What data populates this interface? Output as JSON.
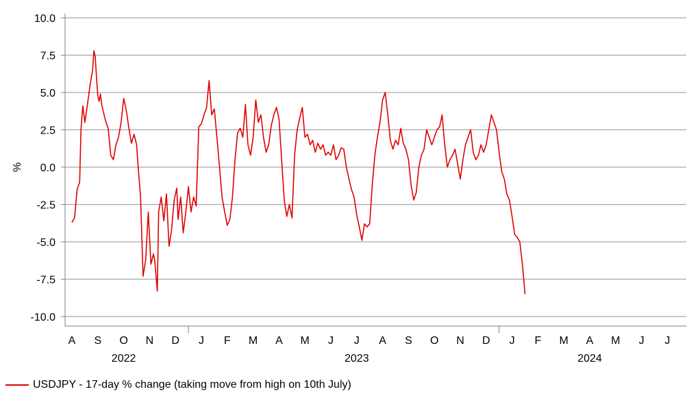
{
  "chart_data": {
    "type": "line",
    "title": "",
    "xlabel": "",
    "ylabel": "%",
    "ylim": [
      -10,
      10
    ],
    "yticks": [
      "10.0",
      "7.5",
      "5.0",
      "2.5",
      "0.0",
      "-2.5",
      "-5.0",
      "-7.5",
      "-10.0"
    ],
    "grid": true,
    "legend_position": "bottom-left",
    "months": [
      "A",
      "S",
      "O",
      "N",
      "D",
      "J",
      "F",
      "M",
      "A",
      "M",
      "J",
      "J",
      "A",
      "S",
      "O",
      "N",
      "D",
      "J",
      "F",
      "M",
      "A",
      "M",
      "J",
      "J"
    ],
    "years": [
      {
        "label": "2022",
        "month_index": 2
      },
      {
        "label": "2023",
        "month_index": 11
      },
      {
        "label": "2024",
        "month_index": 20
      }
    ],
    "series": [
      {
        "name": "USDJPY - 17-day % change (taking move from high on 10th July)",
        "color": "#e00000",
        "points": [
          [
            0.0,
            -3.7
          ],
          [
            0.1,
            -3.4
          ],
          [
            0.2,
            -1.5
          ],
          [
            0.3,
            -1.0
          ],
          [
            0.35,
            2.5
          ],
          [
            0.42,
            4.1
          ],
          [
            0.5,
            3.0
          ],
          [
            0.6,
            4.2
          ],
          [
            0.7,
            5.5
          ],
          [
            0.8,
            6.5
          ],
          [
            0.85,
            7.8
          ],
          [
            0.9,
            7.4
          ],
          [
            0.95,
            6.0
          ],
          [
            1.0,
            4.8
          ],
          [
            1.05,
            4.4
          ],
          [
            1.1,
            4.9
          ],
          [
            1.15,
            4.2
          ],
          [
            1.2,
            3.8
          ],
          [
            1.3,
            3.1
          ],
          [
            1.4,
            2.6
          ],
          [
            1.5,
            0.8
          ],
          [
            1.6,
            0.5
          ],
          [
            1.65,
            1.0
          ],
          [
            1.7,
            1.5
          ],
          [
            1.8,
            2.0
          ],
          [
            1.9,
            3.0
          ],
          [
            2.0,
            4.6
          ],
          [
            2.1,
            3.8
          ],
          [
            2.2,
            2.6
          ],
          [
            2.3,
            1.6
          ],
          [
            2.4,
            2.2
          ],
          [
            2.5,
            1.5
          ],
          [
            2.55,
            0.2
          ],
          [
            2.65,
            -2.0
          ],
          [
            2.75,
            -7.3
          ],
          [
            2.85,
            -6.2
          ],
          [
            2.95,
            -3.0
          ],
          [
            3.05,
            -6.5
          ],
          [
            3.15,
            -5.8
          ],
          [
            3.2,
            -6.3
          ],
          [
            3.3,
            -8.3
          ],
          [
            3.35,
            -3.0
          ],
          [
            3.45,
            -2.0
          ],
          [
            3.55,
            -3.6
          ],
          [
            3.65,
            -1.8
          ],
          [
            3.75,
            -5.3
          ],
          [
            3.85,
            -4.2
          ],
          [
            3.95,
            -2.2
          ],
          [
            4.05,
            -1.4
          ],
          [
            4.1,
            -3.5
          ],
          [
            4.2,
            -2.0
          ],
          [
            4.3,
            -4.4
          ],
          [
            4.4,
            -3.0
          ],
          [
            4.5,
            -1.3
          ],
          [
            4.6,
            -3.0
          ],
          [
            4.7,
            -2.0
          ],
          [
            4.8,
            -2.6
          ],
          [
            4.9,
            2.7
          ],
          [
            5.0,
            2.9
          ],
          [
            5.1,
            3.5
          ],
          [
            5.2,
            4.0
          ],
          [
            5.3,
            5.8
          ],
          [
            5.4,
            3.5
          ],
          [
            5.5,
            3.9
          ],
          [
            5.6,
            2.0
          ],
          [
            5.7,
            0.0
          ],
          [
            5.8,
            -2.0
          ],
          [
            5.9,
            -3.0
          ],
          [
            6.0,
            -3.9
          ],
          [
            6.1,
            -3.5
          ],
          [
            6.2,
            -2.0
          ],
          [
            6.3,
            0.5
          ],
          [
            6.4,
            2.3
          ],
          [
            6.5,
            2.6
          ],
          [
            6.6,
            2.0
          ],
          [
            6.7,
            4.2
          ],
          [
            6.8,
            1.5
          ],
          [
            6.9,
            0.8
          ],
          [
            7.0,
            2.0
          ],
          [
            7.1,
            4.5
          ],
          [
            7.2,
            3.0
          ],
          [
            7.3,
            3.5
          ],
          [
            7.4,
            2.0
          ],
          [
            7.5,
            1.0
          ],
          [
            7.6,
            1.5
          ],
          [
            7.7,
            2.8
          ],
          [
            7.8,
            3.5
          ],
          [
            7.9,
            4.0
          ],
          [
            8.0,
            3.2
          ],
          [
            8.1,
            0.5
          ],
          [
            8.2,
            -2.2
          ],
          [
            8.3,
            -3.3
          ],
          [
            8.4,
            -2.5
          ],
          [
            8.5,
            -3.4
          ],
          [
            8.6,
            0.8
          ],
          [
            8.7,
            2.5
          ],
          [
            8.8,
            3.3
          ],
          [
            8.9,
            4.0
          ],
          [
            9.0,
            2.0
          ],
          [
            9.1,
            2.2
          ],
          [
            9.2,
            1.5
          ],
          [
            9.3,
            1.8
          ],
          [
            9.4,
            1.0
          ],
          [
            9.5,
            1.6
          ],
          [
            9.6,
            1.2
          ],
          [
            9.7,
            1.5
          ],
          [
            9.8,
            0.8
          ],
          [
            9.9,
            1.0
          ],
          [
            10.0,
            0.8
          ],
          [
            10.1,
            1.5
          ],
          [
            10.2,
            0.5
          ],
          [
            10.3,
            0.8
          ],
          [
            10.4,
            1.3
          ],
          [
            10.5,
            1.2
          ],
          [
            10.6,
            0.0
          ],
          [
            10.7,
            -0.8
          ],
          [
            10.8,
            -1.5
          ],
          [
            10.9,
            -2.0
          ],
          [
            11.0,
            -3.2
          ],
          [
            11.1,
            -4.0
          ],
          [
            11.2,
            -4.9
          ],
          [
            11.3,
            -3.8
          ],
          [
            11.4,
            -4.0
          ],
          [
            11.5,
            -3.8
          ],
          [
            11.6,
            -1.2
          ],
          [
            11.7,
            0.8
          ],
          [
            11.8,
            2.0
          ],
          [
            11.9,
            3.0
          ],
          [
            12.0,
            4.5
          ],
          [
            12.1,
            5.0
          ],
          [
            12.2,
            3.5
          ],
          [
            12.3,
            1.8
          ],
          [
            12.4,
            1.2
          ],
          [
            12.5,
            1.8
          ],
          [
            12.6,
            1.5
          ],
          [
            12.7,
            2.6
          ],
          [
            12.8,
            1.6
          ],
          [
            12.9,
            1.2
          ],
          [
            13.0,
            0.5
          ],
          [
            13.1,
            -1.2
          ],
          [
            13.2,
            -2.2
          ],
          [
            13.3,
            -1.7
          ],
          [
            13.4,
            0.0
          ],
          [
            13.5,
            0.8
          ],
          [
            13.6,
            1.2
          ],
          [
            13.7,
            2.5
          ],
          [
            13.8,
            2.0
          ],
          [
            13.9,
            1.5
          ],
          [
            14.0,
            2.0
          ],
          [
            14.1,
            2.5
          ],
          [
            14.2,
            2.7
          ],
          [
            14.3,
            3.5
          ],
          [
            14.4,
            1.5
          ],
          [
            14.5,
            0.0
          ],
          [
            14.6,
            0.5
          ],
          [
            14.7,
            0.8
          ],
          [
            14.8,
            1.2
          ],
          [
            14.9,
            0.2
          ],
          [
            15.0,
            -0.8
          ],
          [
            15.1,
            0.5
          ],
          [
            15.2,
            1.5
          ],
          [
            15.3,
            2.0
          ],
          [
            15.4,
            2.5
          ],
          [
            15.5,
            1.0
          ],
          [
            15.6,
            0.5
          ],
          [
            15.7,
            0.8
          ],
          [
            15.8,
            1.5
          ],
          [
            15.9,
            1.0
          ],
          [
            16.0,
            1.5
          ],
          [
            16.1,
            2.5
          ],
          [
            16.2,
            3.5
          ],
          [
            16.3,
            3.0
          ],
          [
            16.4,
            2.5
          ],
          [
            16.5,
            1.0
          ],
          [
            16.6,
            -0.3
          ],
          [
            16.7,
            -0.8
          ],
          [
            16.8,
            -1.8
          ],
          [
            16.9,
            -2.2
          ],
          [
            17.0,
            -3.3
          ],
          [
            17.1,
            -4.5
          ],
          [
            17.2,
            -4.7
          ],
          [
            17.3,
            -5.0
          ],
          [
            17.4,
            -6.5
          ],
          [
            17.5,
            -8.5
          ]
        ]
      }
    ]
  }
}
